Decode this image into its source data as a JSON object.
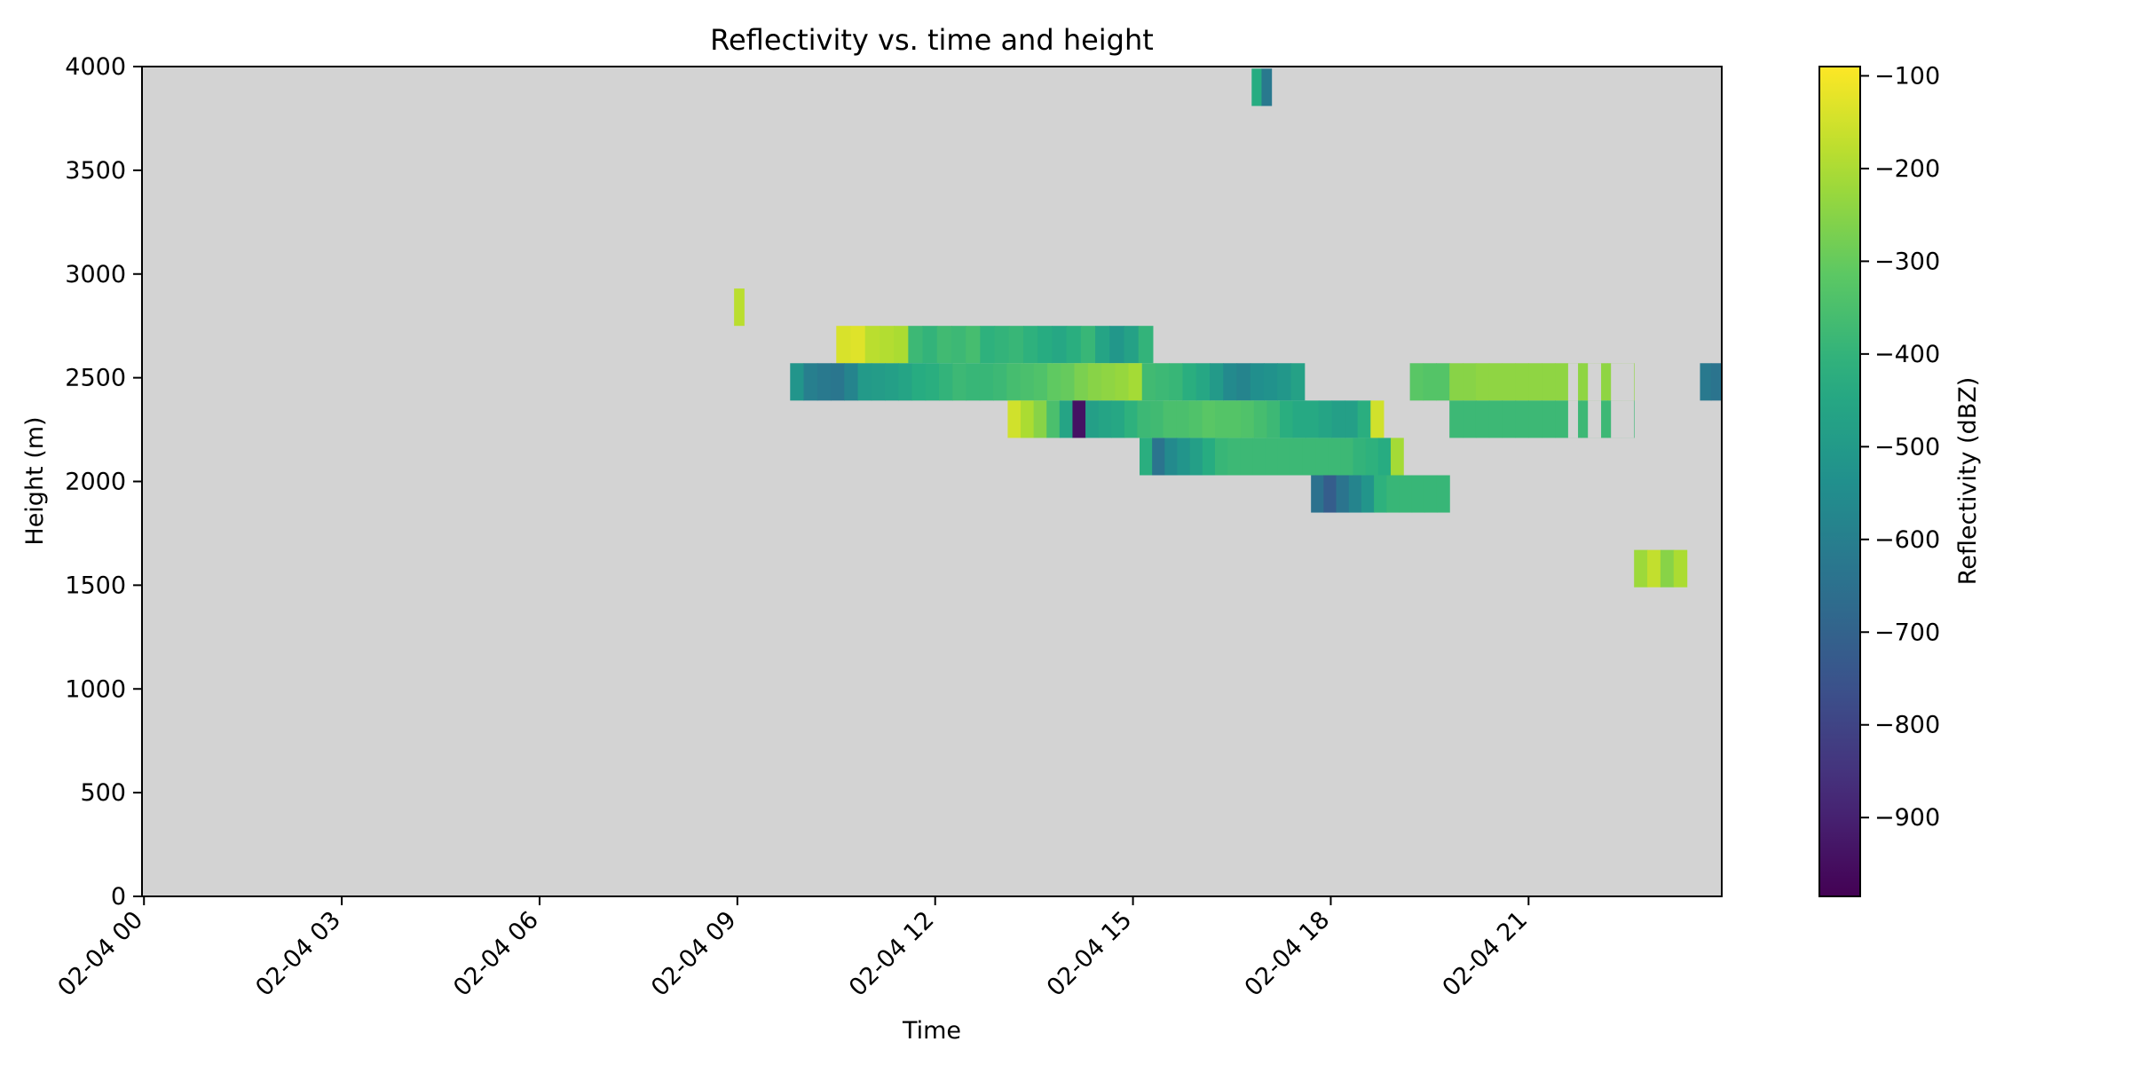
{
  "chart_data": {
    "type": "heatmap",
    "title": "Reflectivity vs. time and height",
    "xlabel": "Time",
    "ylabel": "Height (m)",
    "colorbar_label": "Reflectivity (dBZ)",
    "colormap": "viridis",
    "background_color": "#d3d3d3",
    "x_range": [
      "2025-02-04 00:00",
      "2025-02-04 23:55"
    ],
    "xlim": [
      -0.03,
      23.93
    ],
    "x_ticks": [
      0,
      3,
      6,
      9,
      12,
      15,
      18,
      21
    ],
    "x_tick_labels": [
      "02-04 00",
      "02-04 03",
      "02-04 06",
      "02-04 09",
      "02-04 12",
      "02-04 15",
      "02-04 18",
      "02-04 21"
    ],
    "ylim": [
      0,
      4000
    ],
    "y_ticks": [
      0,
      500,
      1000,
      1500,
      2000,
      2500,
      3000,
      3500,
      4000
    ],
    "y_tick_labels": [
      "0",
      "500",
      "1000",
      "1500",
      "2000",
      "2500",
      "3000",
      "3500",
      "4000"
    ],
    "colorbar_range": [
      -985,
      -90
    ],
    "colorbar_ticks": [
      -900,
      -800,
      -700,
      -600,
      -500,
      -400,
      -300,
      -200,
      -100
    ],
    "colorbar_tick_labels": [
      "−900",
      "−800",
      "−700",
      "−600",
      "−500",
      "−400",
      "−300",
      "−200",
      "−100"
    ],
    "cell_height_m": 180,
    "cell_width_h": 1,
    "segments": [
      {
        "y": 3900,
        "x": [
          16.8,
          17.1
        ],
        "v": [
          -430,
          -620
        ]
      },
      {
        "y": 2840,
        "x": [
          8.95,
          9.1
        ],
        "v": [
          -180
        ]
      },
      {
        "y": 2660,
        "x": [
          10.5,
          15.3
        ],
        "v": [
          -140,
          -130,
          -180,
          -190,
          -200,
          -380,
          -400,
          -370,
          -380,
          -360,
          -410,
          -400,
          -390,
          -410,
          -430,
          -450,
          -420,
          -390,
          -460,
          -510,
          -470,
          -400
        ]
      },
      {
        "y": 2480,
        "x": [
          9.8,
          17.6
        ],
        "v": [
          -520,
          -600,
          -620,
          -630,
          -580,
          -500,
          -490,
          -480,
          -460,
          -430,
          -420,
          -400,
          -380,
          -390,
          -390,
          -380,
          -360,
          -350,
          -340,
          -310,
          -300,
          -270,
          -250,
          -240,
          -230,
          -210,
          -370,
          -380,
          -390,
          -420,
          -450,
          -500,
          -560,
          -580,
          -540,
          -530,
          -510,
          -470
        ]
      },
      {
        "y": 2480,
        "x": [
          19.2,
          22.6
        ],
        "v": [
          -320,
          -330,
          -330,
          -250,
          -250,
          -240,
          -240,
          -240,
          -240,
          -240,
          -240,
          -240,
          -240,
          -240,
          -240,
          -240,
          -240
        ]
      },
      {
        "y": 2480,
        "x": [
          23.6,
          23.93
        ],
        "v": [
          -620,
          -640
        ]
      },
      {
        "y": 2300,
        "x": [
          13.1,
          18.8
        ],
        "v": [
          -150,
          -200,
          -250,
          -350,
          -460,
          -940,
          -480,
          -460,
          -450,
          -410,
          -380,
          -370,
          -350,
          -350,
          -340,
          -320,
          -330,
          -330,
          -340,
          -360,
          -380,
          -420,
          -440,
          -440,
          -460,
          -480,
          -480,
          -420,
          -150
        ]
      },
      {
        "y": 2300,
        "x": [
          19.8,
          22.6
        ],
        "v": [
          -380,
          -380,
          -380,
          -380,
          -380,
          -380,
          -380,
          -380,
          -380,
          -380,
          -380,
          -380,
          -380,
          -380
        ]
      },
      {
        "y": 2120,
        "x": [
          15.1,
          19.1
        ],
        "v": [
          -420,
          -640,
          -560,
          -520,
          -480,
          -430,
          -390,
          -380,
          -380,
          -380,
          -380,
          -380,
          -380,
          -380,
          -380,
          -380,
          -380,
          -400,
          -410,
          -430,
          -210
        ]
      },
      {
        "y": 1940,
        "x": [
          17.7,
          19.8
        ],
        "v": [
          -650,
          -720,
          -640,
          -580,
          -520,
          -410,
          -390,
          -390,
          -390,
          -390,
          -390
        ]
      },
      {
        "y": 1580,
        "x": [
          22.6,
          23.4
        ],
        "v": [
          -220,
          -170,
          -250,
          -200
        ]
      }
    ],
    "gaps": [
      {
        "y": 2480,
        "x": [
          21.6,
          21.75
        ]
      },
      {
        "y": 2480,
        "x": [
          21.9,
          22.1
        ]
      },
      {
        "y": 2480,
        "x": [
          22.25,
          22.6
        ]
      },
      {
        "y": 2300,
        "x": [
          21.6,
          21.75
        ]
      },
      {
        "y": 2300,
        "x": [
          21.9,
          22.1
        ]
      },
      {
        "y": 2300,
        "x": [
          22.25,
          22.6
        ]
      }
    ]
  }
}
